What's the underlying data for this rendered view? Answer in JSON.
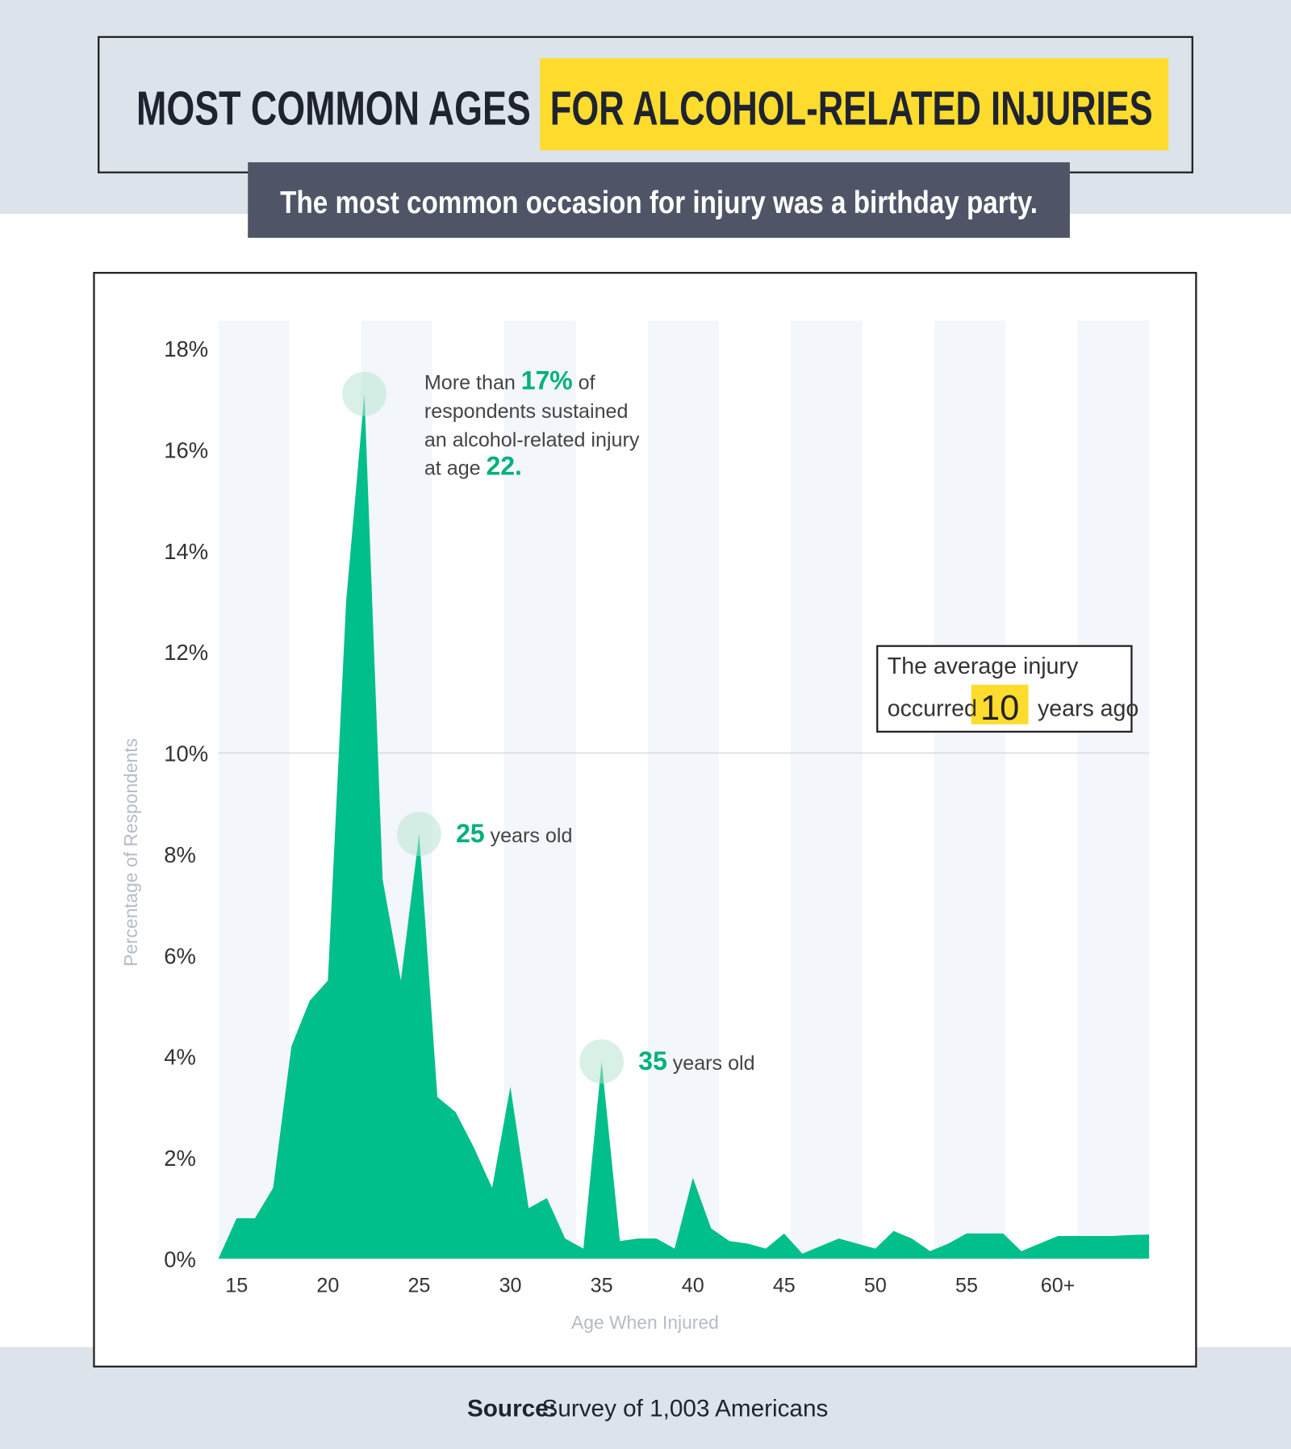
{
  "chart_data": {
    "type": "area",
    "title_part1": "MOST COMMON AGES",
    "title_part2": "FOR ALCOHOL-RELATED INJURIES",
    "subtitle": "The most common occasion for injury was a birthday party.",
    "x_label": "Age When Injured",
    "y_label": "Percentage of Respondents",
    "x": [
      14,
      15,
      16,
      17,
      18,
      19,
      20,
      21,
      22,
      23,
      24,
      25,
      26,
      27,
      28,
      29,
      30,
      31,
      32,
      33,
      34,
      35,
      36,
      37,
      38,
      39,
      40,
      41,
      42,
      43,
      44,
      45,
      46,
      47,
      48,
      49,
      50,
      51,
      52,
      53,
      54,
      55,
      56,
      57,
      58,
      59,
      60,
      61,
      62,
      63,
      64,
      65
    ],
    "values": [
      0,
      0.8,
      0.8,
      1.4,
      4.2,
      5.1,
      5.5,
      13,
      17.1,
      7.5,
      5.5,
      8.4,
      3.2,
      2.9,
      2.2,
      1.4,
      3.4,
      1,
      1.2,
      0.4,
      0.2,
      3.9,
      0.35,
      0.4,
      0.4,
      0.2,
      1.6,
      0.6,
      0.35,
      0.3,
      0.2,
      0.5,
      0.1,
      0.25,
      0.4,
      0.3,
      0.2,
      0.55,
      0.4,
      0.15,
      0.3,
      0.5,
      0.5,
      0.5,
      0.15,
      0.3,
      0.45,
      0.45,
      0.45,
      0.45,
      0.47,
      0.48
    ],
    "color": "#00bf8a",
    "xlim": [
      14,
      65
    ],
    "xticks": [
      15,
      20,
      25,
      30,
      35,
      40,
      45,
      50,
      55,
      {
        "value": 60,
        "label": "60+"
      }
    ],
    "ylim": [
      0,
      18
    ],
    "yticks": [
      {
        "value": 0,
        "label": "0%"
      },
      {
        "value": 2,
        "label": "2%"
      },
      {
        "value": 4,
        "label": "4%"
      },
      {
        "value": 6,
        "label": "6%"
      },
      {
        "value": 8,
        "label": "8%"
      },
      {
        "value": 10,
        "label": "10%"
      },
      {
        "value": 12,
        "label": "12%"
      },
      {
        "value": 14,
        "label": "14%"
      },
      {
        "value": 16,
        "label": "16%"
      },
      {
        "value": 18,
        "label": "18%"
      }
    ],
    "grid_value": 10,
    "annotations": [
      {
        "index": 8,
        "parts": [
          "More than",
          "17%",
          "of",
          "respondents sustained",
          "an alcohol-related injury",
          "at age",
          "22."
        ]
      },
      {
        "index": 11,
        "parts": [
          "25",
          "years old"
        ]
      },
      {
        "index": 21,
        "parts": [
          "35",
          "years old"
        ]
      }
    ],
    "callout": {
      "line1": "The average injury",
      "pre": "occurred",
      "number": "10",
      "post": "years ago"
    },
    "source_label": "Source:",
    "source": "Survey of 1,003 Americans"
  }
}
